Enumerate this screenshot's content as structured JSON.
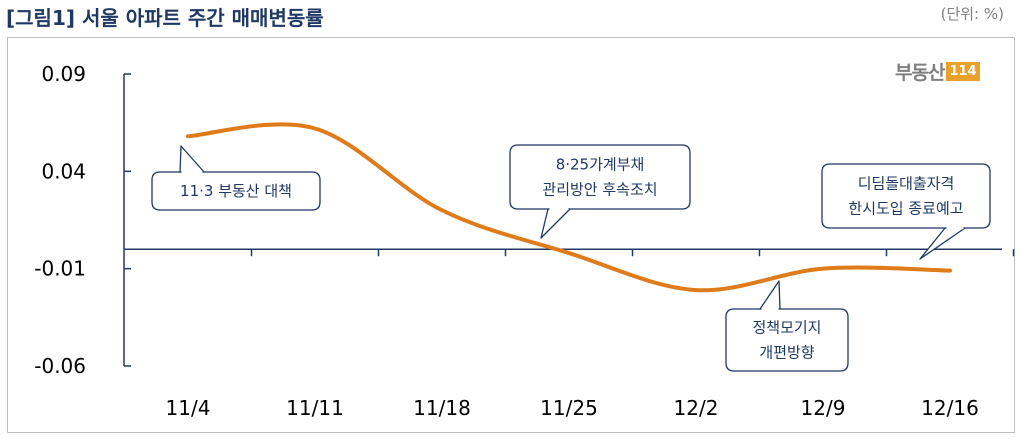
{
  "title": "[그림1] 서울 아파트 주간 매매변동률",
  "unit": "(단위: %)",
  "logo": {
    "text": "부동산",
    "box": "114"
  },
  "chart_data": {
    "type": "line",
    "title": "[그림1] 서울 아파트 주간 매매변동률",
    "categories": [
      "11/4",
      "11/11",
      "11/18",
      "11/25",
      "12/2",
      "12/9",
      "12/16"
    ],
    "series": [
      {
        "values": [
          0.058,
          0.062,
          0.02,
          -0.002,
          -0.021,
          -0.01,
          -0.011
        ]
      }
    ],
    "y_ticks": [
      "0.09",
      "0.04",
      "-0.01",
      "-0.06"
    ],
    "ylim": [
      -0.06,
      0.09
    ],
    "line_color": "#e07b1a",
    "axis_color": "#1f3864",
    "grid": false,
    "annotations": [
      {
        "lines": [
          "11·3 부동산 대책"
        ],
        "target": "11/4"
      },
      {
        "lines": [
          "8·25가계부채",
          "관리방안 후속조치"
        ],
        "target": "11/25"
      },
      {
        "lines": [
          "정책모기지",
          "개편방향"
        ],
        "target": "12/9"
      },
      {
        "lines": [
          "디딤돌대출자격",
          "한시도입 종료예고"
        ],
        "target": "12/16"
      }
    ]
  }
}
